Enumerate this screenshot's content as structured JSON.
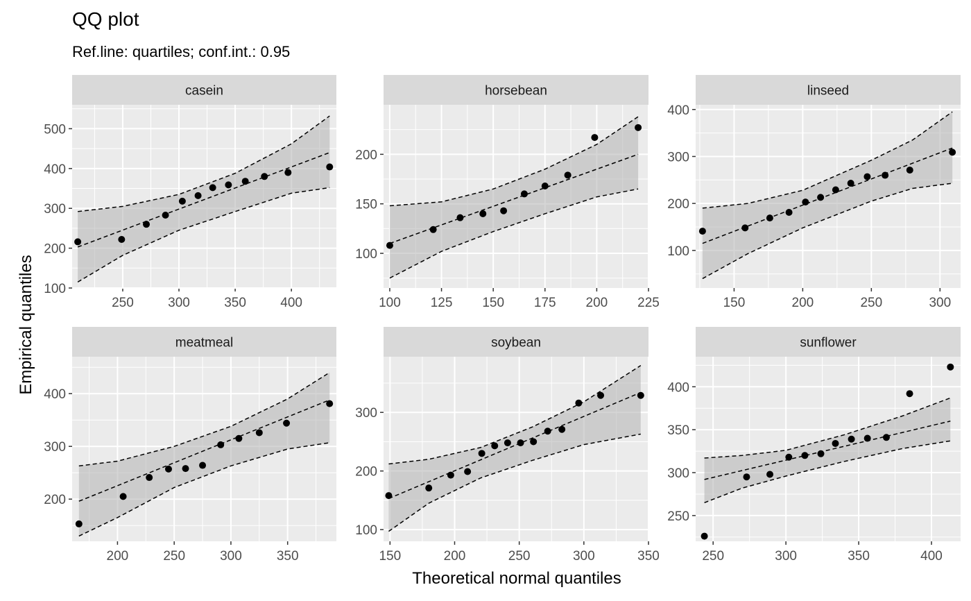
{
  "title": "QQ plot",
  "subtitle": "Ref.line: quartiles; conf.int.: 0.95",
  "chart_data": {
    "type": "scatter",
    "title": "QQ plot",
    "subtitle": "Ref.line: quartiles; conf.int.: 0.95",
    "xlabel": "Theoretical normal quantiles",
    "ylabel": "Empirical quantiles",
    "grid": true,
    "facets": [
      {
        "name": "casein",
        "xlim": [
          205,
          440
        ],
        "ylim": [
          100,
          560
        ],
        "xticks": [
          250,
          300,
          350,
          400
        ],
        "yticks": [
          100,
          200,
          300,
          400,
          500
        ],
        "points": [
          [
            210,
            216
          ],
          [
            249,
            222
          ],
          [
            271,
            260
          ],
          [
            288,
            283
          ],
          [
            303,
            318
          ],
          [
            317,
            332
          ],
          [
            330,
            352
          ],
          [
            344,
            359
          ],
          [
            359,
            368
          ],
          [
            376,
            380
          ],
          [
            397,
            390
          ],
          [
            434,
            404
          ]
        ],
        "ref_line": [
          [
            210,
            203
          ],
          [
            434,
            440
          ]
        ],
        "band_upper": [
          [
            210,
            292
          ],
          [
            250,
            305
          ],
          [
            300,
            335
          ],
          [
            350,
            388
          ],
          [
            400,
            462
          ],
          [
            434,
            532
          ]
        ],
        "band_lower": [
          [
            210,
            115
          ],
          [
            250,
            182
          ],
          [
            300,
            245
          ],
          [
            350,
            292
          ],
          [
            400,
            338
          ],
          [
            434,
            352
          ]
        ]
      },
      {
        "name": "horsebean",
        "xlim": [
          97,
          225
        ],
        "ylim": [
          65,
          250
        ],
        "xticks": [
          100,
          125,
          150,
          175,
          200,
          225
        ],
        "yticks": [
          100,
          150,
          200
        ],
        "points": [
          [
            100,
            108
          ],
          [
            121,
            124
          ],
          [
            134,
            136
          ],
          [
            145,
            140
          ],
          [
            155,
            143
          ],
          [
            165,
            160
          ],
          [
            175,
            168
          ],
          [
            186,
            179
          ],
          [
            199,
            217
          ],
          [
            220,
            227
          ]
        ],
        "ref_line": [
          [
            100,
            110
          ],
          [
            220,
            200
          ]
        ],
        "band_upper": [
          [
            100,
            148
          ],
          [
            125,
            152
          ],
          [
            150,
            165
          ],
          [
            175,
            185
          ],
          [
            200,
            210
          ],
          [
            220,
            238
          ]
        ],
        "band_lower": [
          [
            100,
            75
          ],
          [
            125,
            102
          ],
          [
            150,
            122
          ],
          [
            175,
            140
          ],
          [
            200,
            157
          ],
          [
            220,
            165
          ]
        ]
      },
      {
        "name": "linseed",
        "xlim": [
          122,
          315
        ],
        "ylim": [
          20,
          410
        ],
        "xticks": [
          150,
          200,
          250,
          300
        ],
        "yticks": [
          100,
          200,
          300,
          400
        ],
        "points": [
          [
            127,
            141
          ],
          [
            158,
            148
          ],
          [
            176,
            169
          ],
          [
            190,
            181
          ],
          [
            202,
            203
          ],
          [
            213,
            213
          ],
          [
            224,
            229
          ],
          [
            235,
            243
          ],
          [
            247,
            257
          ],
          [
            260,
            260
          ],
          [
            278,
            271
          ],
          [
            309,
            309
          ]
        ],
        "ref_line": [
          [
            127,
            115
          ],
          [
            309,
            318
          ]
        ],
        "band_upper": [
          [
            127,
            190
          ],
          [
            160,
            200
          ],
          [
            200,
            228
          ],
          [
            250,
            292
          ],
          [
            280,
            335
          ],
          [
            309,
            395
          ]
        ],
        "band_lower": [
          [
            127,
            40
          ],
          [
            160,
            93
          ],
          [
            200,
            148
          ],
          [
            250,
            205
          ],
          [
            280,
            232
          ],
          [
            309,
            243
          ]
        ]
      },
      {
        "name": "meatmeal",
        "xlim": [
          160,
          393
        ],
        "ylim": [
          120,
          470
        ],
        "xticks": [
          200,
          250,
          300,
          350
        ],
        "yticks": [
          200,
          300,
          400
        ],
        "points": [
          [
            166,
            153
          ],
          [
            205,
            205
          ],
          [
            228,
            241
          ],
          [
            245,
            257
          ],
          [
            260,
            258
          ],
          [
            275,
            264
          ],
          [
            291,
            303
          ],
          [
            307,
            315
          ],
          [
            325,
            326
          ],
          [
            349,
            344
          ],
          [
            387,
            381
          ]
        ],
        "ref_line": [
          [
            166,
            196
          ],
          [
            387,
            388
          ]
        ],
        "band_upper": [
          [
            166,
            263
          ],
          [
            200,
            272
          ],
          [
            250,
            300
          ],
          [
            300,
            338
          ],
          [
            350,
            390
          ],
          [
            387,
            440
          ]
        ],
        "band_lower": [
          [
            166,
            130
          ],
          [
            200,
            165
          ],
          [
            250,
            222
          ],
          [
            300,
            263
          ],
          [
            350,
            295
          ],
          [
            387,
            307
          ]
        ]
      },
      {
        "name": "soybean",
        "xlim": [
          145,
          350
        ],
        "ylim": [
          80,
          395
        ],
        "xticks": [
          150,
          200,
          250,
          300,
          350
        ],
        "yticks": [
          100,
          200,
          300
        ],
        "points": [
          [
            149,
            158
          ],
          [
            180,
            171
          ],
          [
            197,
            193
          ],
          [
            210,
            199
          ],
          [
            221,
            230
          ],
          [
            231,
            243
          ],
          [
            241,
            248
          ],
          [
            251,
            248
          ],
          [
            261,
            250
          ],
          [
            272,
            268
          ],
          [
            283,
            271
          ],
          [
            296,
            316
          ],
          [
            313,
            329
          ],
          [
            344,
            329
          ]
        ],
        "ref_line": [
          [
            149,
            153
          ],
          [
            344,
            334
          ]
        ],
        "band_upper": [
          [
            149,
            212
          ],
          [
            180,
            220
          ],
          [
            220,
            240
          ],
          [
            260,
            275
          ],
          [
            300,
            318
          ],
          [
            344,
            380
          ]
        ],
        "band_lower": [
          [
            149,
            97
          ],
          [
            180,
            145
          ],
          [
            220,
            188
          ],
          [
            260,
            218
          ],
          [
            300,
            245
          ],
          [
            344,
            263
          ]
        ]
      },
      {
        "name": "sunflower",
        "xlim": [
          238,
          420
        ],
        "ylim": [
          220,
          435
        ],
        "xticks": [
          250,
          300,
          350,
          400
        ],
        "yticks": [
          250,
          300,
          350,
          400
        ],
        "points": [
          [
            244,
            226
          ],
          [
            273,
            295
          ],
          [
            289,
            298
          ],
          [
            302,
            318
          ],
          [
            313,
            320
          ],
          [
            324,
            322
          ],
          [
            334,
            334
          ],
          [
            345,
            339
          ],
          [
            356,
            340
          ],
          [
            369,
            341
          ],
          [
            385,
            392
          ],
          [
            413,
            423
          ]
        ],
        "ref_line": [
          [
            244,
            292
          ],
          [
            413,
            360
          ]
        ],
        "band_upper": [
          [
            244,
            317
          ],
          [
            270,
            320
          ],
          [
            300,
            326
          ],
          [
            340,
            344
          ],
          [
            380,
            366
          ],
          [
            413,
            387
          ]
        ],
        "band_lower": [
          [
            244,
            265
          ],
          [
            270,
            282
          ],
          [
            300,
            296
          ],
          [
            340,
            313
          ],
          [
            380,
            328
          ],
          [
            413,
            337
          ]
        ]
      }
    ]
  }
}
